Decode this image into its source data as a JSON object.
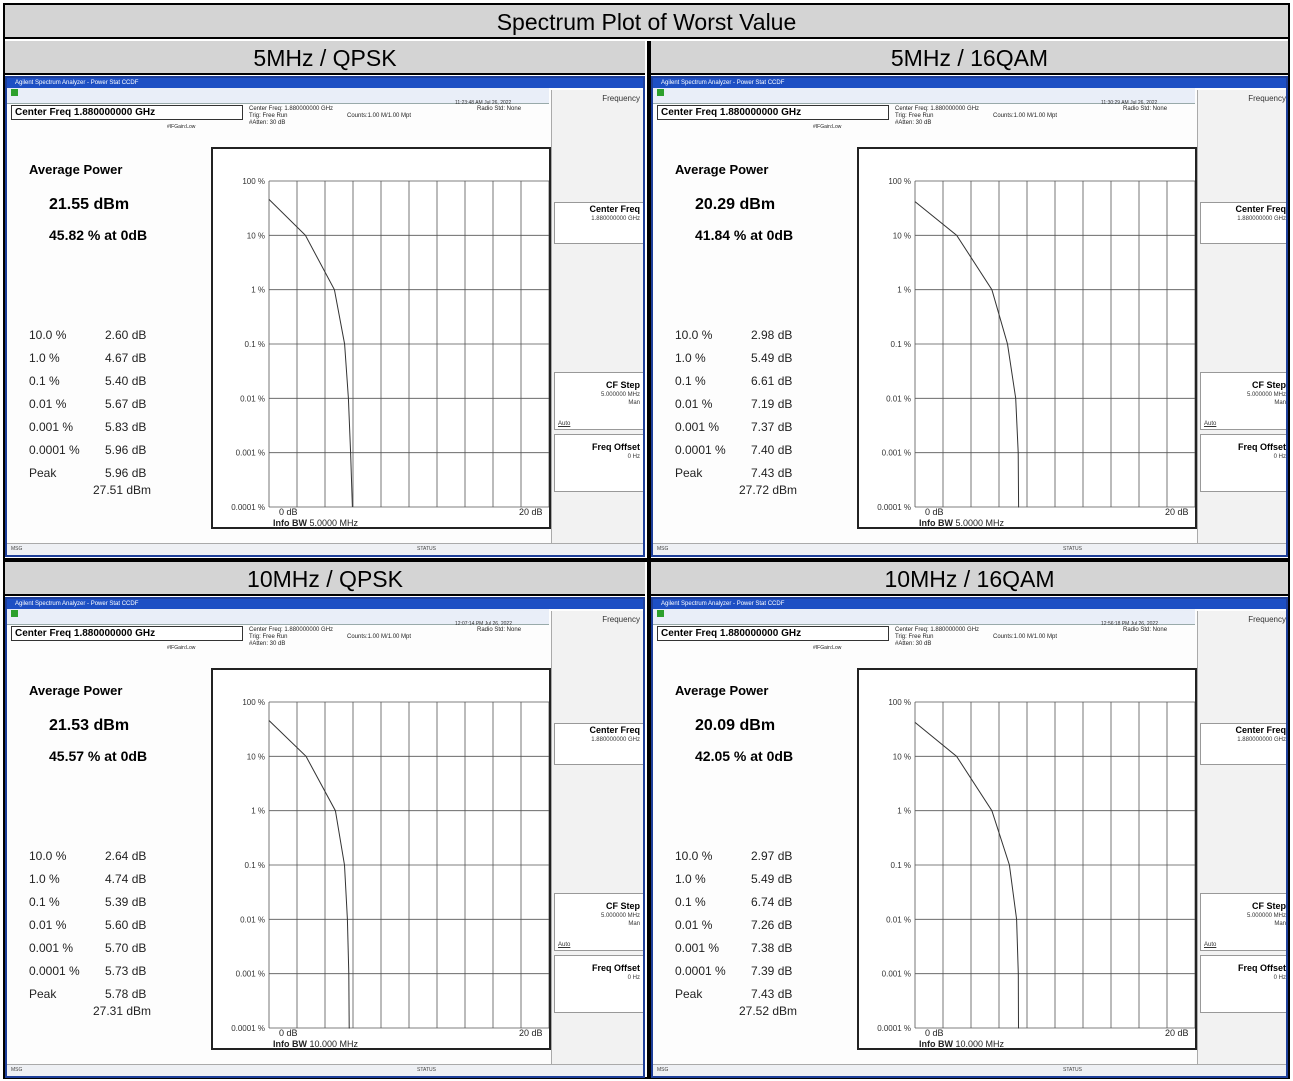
{
  "title": "Spectrum Plot of Worst Value",
  "window_title": "Agilent Spectrum Analyzer - Power Stat CCDF",
  "center_freq": "Center Freq 1.880000000 GHz",
  "meas_info": [
    "Center Freq: 1.880000000 GHz",
    "Trig: Free Run",
    "#Atten: 30 dB"
  ],
  "counts": "Counts:1.00 M/1.00 Mpt",
  "radio_std": "Radio Std: None",
  "if_gain": "#IFGain:Low",
  "softkeys": {
    "frequency": "Frequency",
    "center_freq": "Center Freq",
    "center_freq_val": "1.880000000 GHz",
    "cf_step": "CF Step",
    "cf_step_val": "5.000000 MHz",
    "cf_step_auto": "Auto",
    "cf_step_man": "Man",
    "freq_offset": "Freq Offset",
    "freq_offset_val": "0 Hz"
  },
  "avg_power_label": "Average Power",
  "y_ticks": [
    "100 %",
    "10 %",
    "1 %",
    "0.1 %",
    "0.01 %",
    "0.001 %",
    "0.0001 %"
  ],
  "x_min_label": "0 dB",
  "x_max_label": "20 dB",
  "info_bw_label": "Info BW",
  "msg_label": "MSG",
  "status_label": "STATUS",
  "cells": [
    {
      "header": "5MHz / QPSK",
      "avg_dbm": "21.55 dBm",
      "avg_pct": "45.82 % at 0dB",
      "info_bw": "5.0000 MHz",
      "timestamp": "11:23:48 AM Jul 26, 2022",
      "stats": [
        {
          "p": "10.0 %",
          "v": "2.60 dB"
        },
        {
          "p": "1.0 %",
          "v": "4.67 dB"
        },
        {
          "p": "0.1 %",
          "v": "5.40 dB"
        },
        {
          "p": "0.01 %",
          "v": "5.67 dB"
        },
        {
          "p": "0.001 %",
          "v": "5.83 dB"
        },
        {
          "p": "0.0001 %",
          "v": "5.96 dB"
        },
        {
          "p": "Peak",
          "v": "5.96 dB"
        }
      ],
      "peak_dbm": "27.51 dBm"
    },
    {
      "header": "5MHz / 16QAM",
      "avg_dbm": "20.29 dBm",
      "avg_pct": "41.84 % at 0dB",
      "info_bw": "5.0000 MHz",
      "timestamp": "11:30:29 AM Jul 26, 2022",
      "stats": [
        {
          "p": "10.0 %",
          "v": "2.98 dB"
        },
        {
          "p": "1.0 %",
          "v": "5.49 dB"
        },
        {
          "p": "0.1 %",
          "v": "6.61 dB"
        },
        {
          "p": "0.01 %",
          "v": "7.19 dB"
        },
        {
          "p": "0.001 %",
          "v": "7.37 dB"
        },
        {
          "p": "0.0001 %",
          "v": "7.40 dB"
        },
        {
          "p": "Peak",
          "v": "7.43 dB"
        }
      ],
      "peak_dbm": "27.72 dBm"
    },
    {
      "header": "10MHz / QPSK",
      "avg_dbm": "21.53 dBm",
      "avg_pct": "45.57 % at 0dB",
      "info_bw": "10.000 MHz",
      "timestamp": "12:07:14 PM Jul 26, 2022",
      "stats": [
        {
          "p": "10.0 %",
          "v": "2.64 dB"
        },
        {
          "p": "1.0 %",
          "v": "4.74 dB"
        },
        {
          "p": "0.1 %",
          "v": "5.39 dB"
        },
        {
          "p": "0.01 %",
          "v": "5.60 dB"
        },
        {
          "p": "0.001 %",
          "v": "5.70 dB"
        },
        {
          "p": "0.0001 %",
          "v": "5.73 dB"
        },
        {
          "p": "Peak",
          "v": "5.78 dB"
        }
      ],
      "peak_dbm": "27.31 dBm"
    },
    {
      "header": "10MHz / 16QAM",
      "avg_dbm": "20.09 dBm",
      "avg_pct": "42.05 % at 0dB",
      "info_bw": "10.000 MHz",
      "timestamp": "12:56:18 PM Jul 26, 2022",
      "stats": [
        {
          "p": "10.0 %",
          "v": "2.97 dB"
        },
        {
          "p": "1.0 %",
          "v": "5.49 dB"
        },
        {
          "p": "0.1 %",
          "v": "6.74 dB"
        },
        {
          "p": "0.01 %",
          "v": "7.26 dB"
        },
        {
          "p": "0.001 %",
          "v": "7.38 dB"
        },
        {
          "p": "0.0001 %",
          "v": "7.39 dB"
        },
        {
          "p": "Peak",
          "v": "7.43 dB"
        }
      ],
      "peak_dbm": "27.52 dBm"
    }
  ]
}
